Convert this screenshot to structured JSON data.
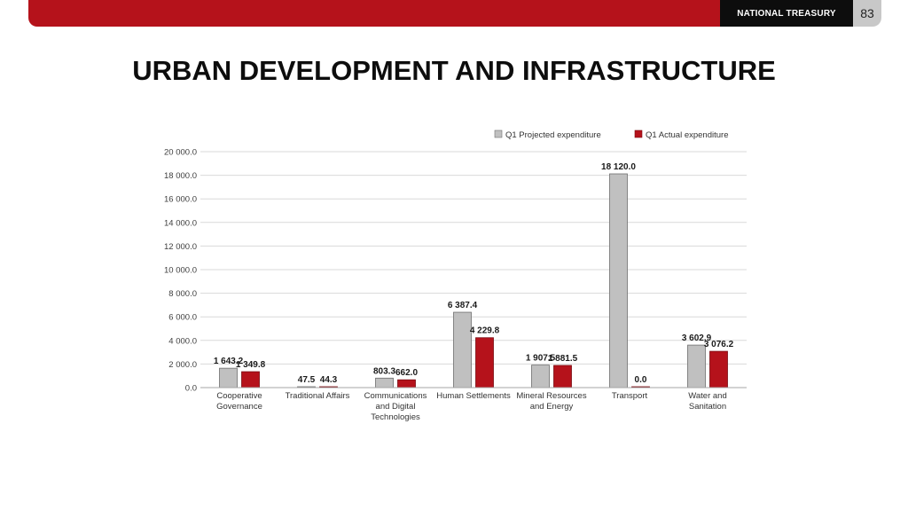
{
  "header": {
    "brand": "NATIONAL TREASURY",
    "page_number": "83"
  },
  "slide": {
    "title": "URBAN DEVELOPMENT AND INFRASTRUCTURE"
  },
  "colors": {
    "projected": "#c0c0c0",
    "actual": "#b5121b",
    "brand_bar": "#b5121b"
  },
  "chart_data": {
    "type": "bar",
    "title": "",
    "xlabel": "",
    "ylabel": "",
    "ylim": [
      0,
      20000
    ],
    "yticks": [
      "0.0",
      "2 000.0",
      "4 000.0",
      "6 000.0",
      "8 000.0",
      "10 000.0",
      "12 000.0",
      "14 000.0",
      "16 000.0",
      "18 000.0",
      "20 000.0"
    ],
    "legend_position": "top-right",
    "grid": true,
    "categories": [
      [
        "Cooperative",
        "Governance"
      ],
      [
        "Traditional Affairs"
      ],
      [
        "Communications",
        "and Digital",
        "Technologies"
      ],
      [
        "Human Settlements"
      ],
      [
        "Mineral Resources",
        "and Energy"
      ],
      [
        "Transport"
      ],
      [
        "Water and",
        "Sanitation"
      ]
    ],
    "series": [
      {
        "name": "Q1 Projected expenditure",
        "values": [
          1643.2,
          47.5,
          803.3,
          6387.4,
          1907.5,
          18120.0,
          3602.9
        ],
        "labels": [
          "1 643.2",
          "47.5",
          "803.3",
          "6 387.4",
          "1 907.5",
          "18 120.0",
          "3 602.9"
        ]
      },
      {
        "name": "Q1 Actual expenditure",
        "values": [
          1349.8,
          44.3,
          662.0,
          4229.8,
          1881.5,
          0.0,
          3076.2
        ],
        "labels": [
          "1 349.8",
          "44.3",
          "662.0",
          "4 229.8",
          "1 881.5",
          "0.0",
          "3 076.2"
        ]
      }
    ]
  }
}
